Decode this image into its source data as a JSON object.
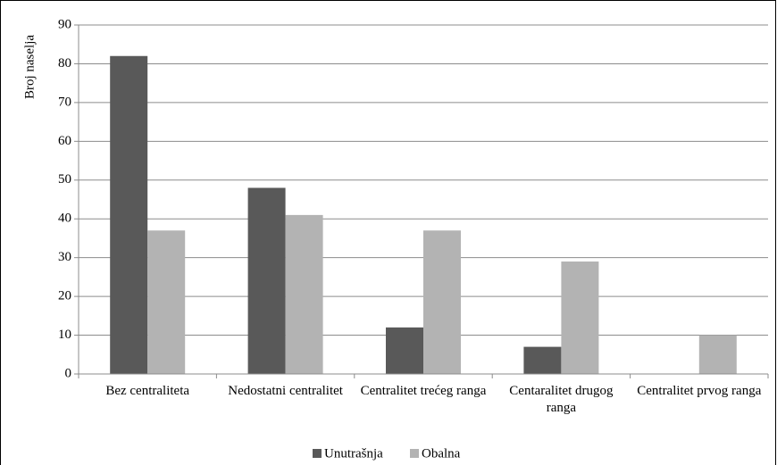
{
  "chart_data": {
    "type": "bar",
    "categories": [
      "Bez centraliteta",
      "Nedostatni centralitet",
      "Centralitet trećeg ranga",
      "Centaralitet drugog ranga",
      "Centralitet prvog ranga"
    ],
    "series": [
      {
        "name": "Unutrašnja",
        "color": "#595959",
        "values": [
          82,
          48,
          12,
          7,
          0
        ]
      },
      {
        "name": "Obalna",
        "color": "#b3b3b3",
        "values": [
          37,
          41,
          37,
          29,
          10
        ]
      }
    ],
    "y_label": "Broj naselja",
    "ylim": [
      0,
      90
    ],
    "yticks": [
      0,
      10,
      20,
      30,
      40,
      50,
      60,
      70,
      80,
      90
    ],
    "grid": true,
    "legend": "bottom"
  }
}
